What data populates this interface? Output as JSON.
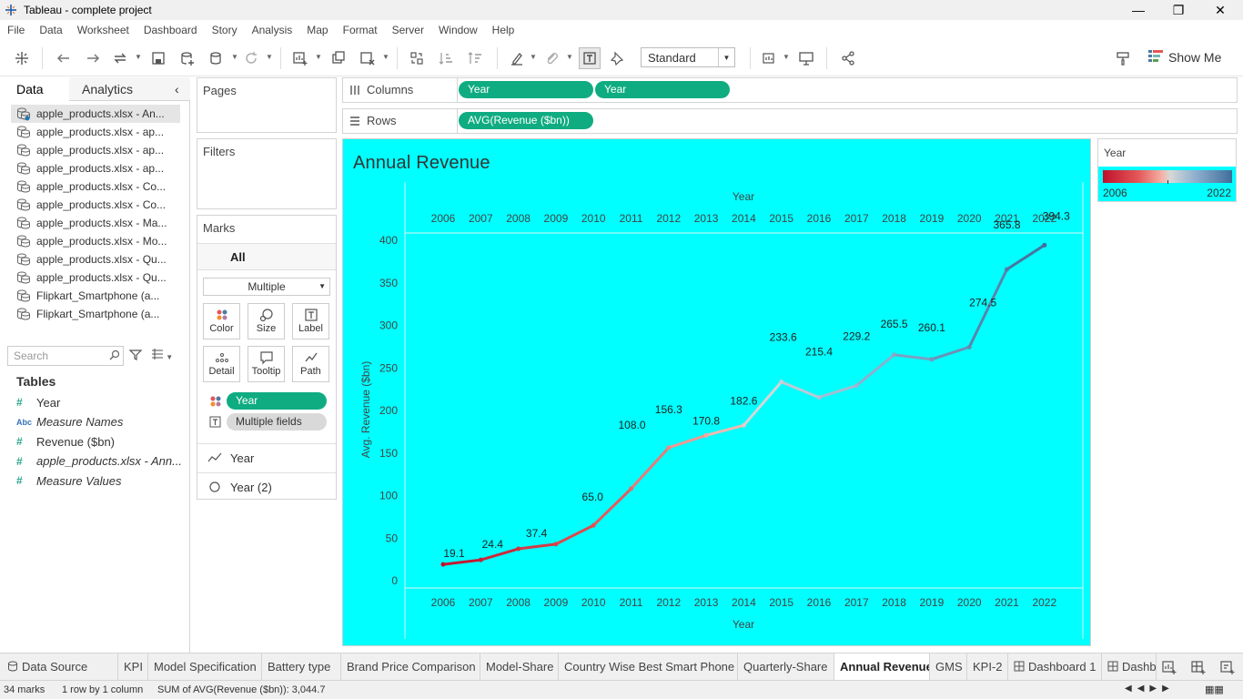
{
  "window": {
    "title": "Tableau - complete project"
  },
  "menu": [
    "File",
    "Data",
    "Worksheet",
    "Dashboard",
    "Story",
    "Analysis",
    "Map",
    "Format",
    "Server",
    "Window",
    "Help"
  ],
  "toolbar": {
    "fit": "Standard",
    "show_me": "Show Me"
  },
  "data_pane": {
    "tabs": [
      "Data",
      "Analytics"
    ],
    "datasources": [
      "apple_products.xlsx - An...",
      "apple_products.xlsx - ap...",
      "apple_products.xlsx - ap...",
      "apple_products.xlsx - ap...",
      "apple_products.xlsx - Co...",
      "apple_products.xlsx - Co...",
      "apple_products.xlsx - Ma...",
      "apple_products.xlsx - Mo...",
      "apple_products.xlsx - Qu...",
      "apple_products.xlsx - Qu...",
      "Flipkart_Smartphone (a...",
      "Flipkart_Smartphone (a..."
    ],
    "search_placeholder": "Search",
    "tables_title": "Tables",
    "fields": [
      {
        "type": "#",
        "name": "Year",
        "italic": false
      },
      {
        "type": "Abc",
        "name": "Measure Names",
        "italic": true
      },
      {
        "type": "#",
        "name": "Revenue ($bn)",
        "italic": false
      },
      {
        "type": "#",
        "name": "apple_products.xlsx - Ann...",
        "italic": true
      },
      {
        "type": "#",
        "name": "Measure Values",
        "italic": true
      }
    ]
  },
  "cards": {
    "pages": "Pages",
    "filters": "Filters",
    "marks": "Marks",
    "marks_all": "All",
    "mark_type": "Multiple",
    "mark_buttons": [
      "Color",
      "Size",
      "Label",
      "Detail",
      "Tooltip",
      "Path"
    ],
    "color_pill": "Year",
    "label_pill": "Multiple fields",
    "mark_layers": [
      "Year",
      "Year (2)"
    ]
  },
  "shelves": {
    "columns_label": "Columns",
    "rows_label": "Rows",
    "columns_pills": [
      "Year",
      "Year"
    ],
    "rows_pills": [
      "AVG(Revenue ($bn))"
    ]
  },
  "legend": {
    "title": "Year",
    "min": "2006",
    "max": "2022"
  },
  "chart_data": {
    "type": "line",
    "title": "Annual Revenue",
    "xlabel": "Year",
    "ylabel": "Avg. Revenue ($bn)",
    "x": [
      "2006",
      "2007",
      "2008",
      "2009",
      "2010",
      "2011",
      "2012",
      "2013",
      "2014",
      "2015",
      "2016",
      "2017",
      "2018",
      "2019",
      "2020",
      "2021",
      "2022"
    ],
    "y": [
      19.1,
      24.4,
      37.4,
      42.9,
      65.0,
      108.0,
      156.3,
      170.8,
      182.6,
      233.6,
      215.4,
      229.2,
      265.5,
      260.1,
      274.5,
      365.8,
      394.3
    ],
    "labels": [
      "19.1",
      "24.4",
      "37.4",
      "",
      "65.0",
      "108.0",
      "156.3",
      "170.8",
      "182.6",
      "233.6",
      "215.4",
      "229.2",
      "265.5",
      "260.1",
      "274.5",
      "365.8",
      "394.3"
    ],
    "yticks": [
      "0",
      "50",
      "100",
      "150",
      "200",
      "250",
      "300",
      "350",
      "400"
    ],
    "ylim": [
      0,
      400
    ],
    "color_range": [
      "#c0102c",
      "#3f6e9c"
    ],
    "background": "#00ffff"
  },
  "sheet_tabs": [
    "Data Source",
    "KPI",
    "Model Specification",
    "Battery type",
    "Brand Price Comparison",
    "Model-Share",
    "Country Wise Best Smart Phone",
    "Quarterly-Share",
    "Annual Revenue",
    "GMS",
    "KPI-2",
    "Dashboard 1",
    "Dashb"
  ],
  "active_tab": "Annual Revenue",
  "status": {
    "marks": "34 marks",
    "rows": "1 row by 1 column",
    "sum": "SUM of AVG(Revenue ($bn)): 3,044.7"
  }
}
